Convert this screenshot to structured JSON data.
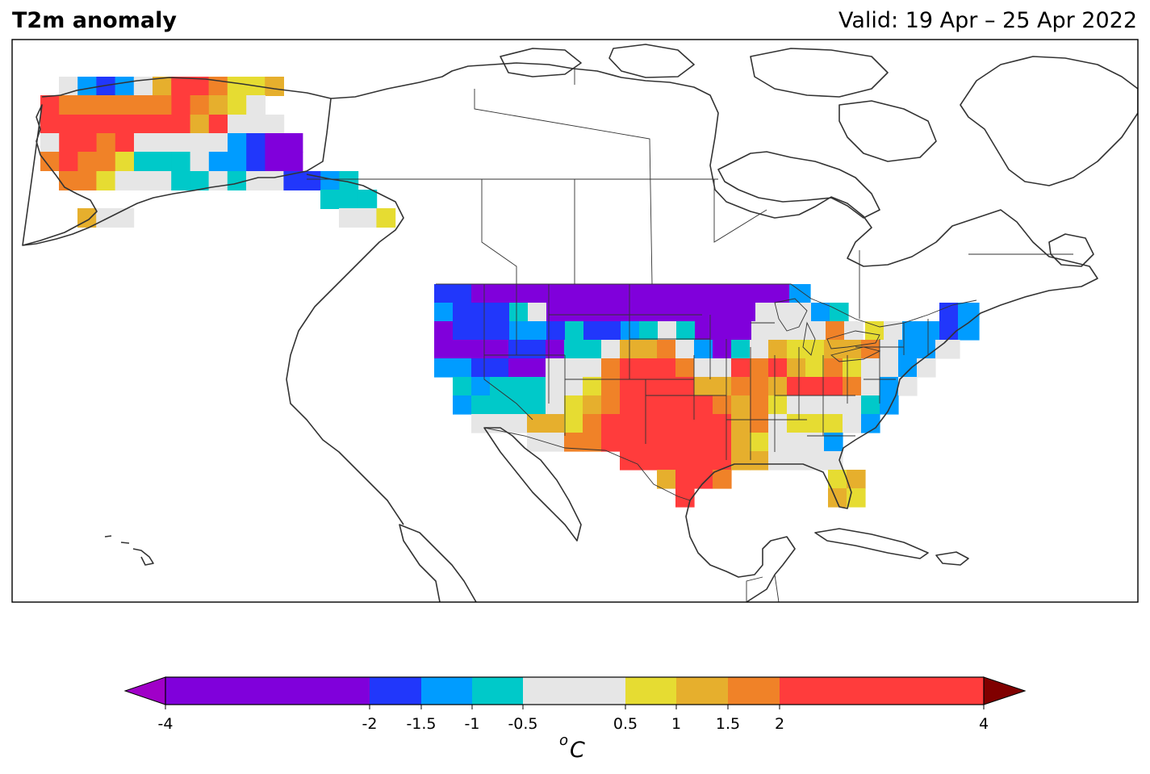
{
  "header": {
    "title": "T2m anomaly",
    "valid": "Valid: 19 Apr – 25 Apr 2022"
  },
  "colorbar": {
    "unit_sup": "o",
    "unit": "C",
    "tick_labels": [
      "-4",
      "-2",
      "-1.5",
      "-1",
      "-0.5",
      "0.5",
      "1",
      "1.5",
      "2",
      "4"
    ],
    "levels": [
      {
        "from": -4,
        "to": -2,
        "color": "#8000db"
      },
      {
        "from": -2,
        "to": -1.5,
        "color": "#2137fb"
      },
      {
        "from": -1.5,
        "to": -1,
        "color": "#009cff"
      },
      {
        "from": -1,
        "to": -0.5,
        "color": "#00c9c9"
      },
      {
        "from": -0.5,
        "to": 0.5,
        "color": "#e6e6e6"
      },
      {
        "from": 0.5,
        "to": 1,
        "color": "#e6dc32"
      },
      {
        "from": 1,
        "to": 1.5,
        "color": "#e6af2d"
      },
      {
        "from": 1.5,
        "to": 2,
        "color": "#f08228"
      },
      {
        "from": 2,
        "to": 4,
        "color": "#ff3c3c"
      }
    ],
    "under_color": "#a000c8",
    "over_color": "#800000"
  },
  "map": {
    "region": "North America",
    "coastline_color": "#333333",
    "border_color": "#333333"
  }
}
